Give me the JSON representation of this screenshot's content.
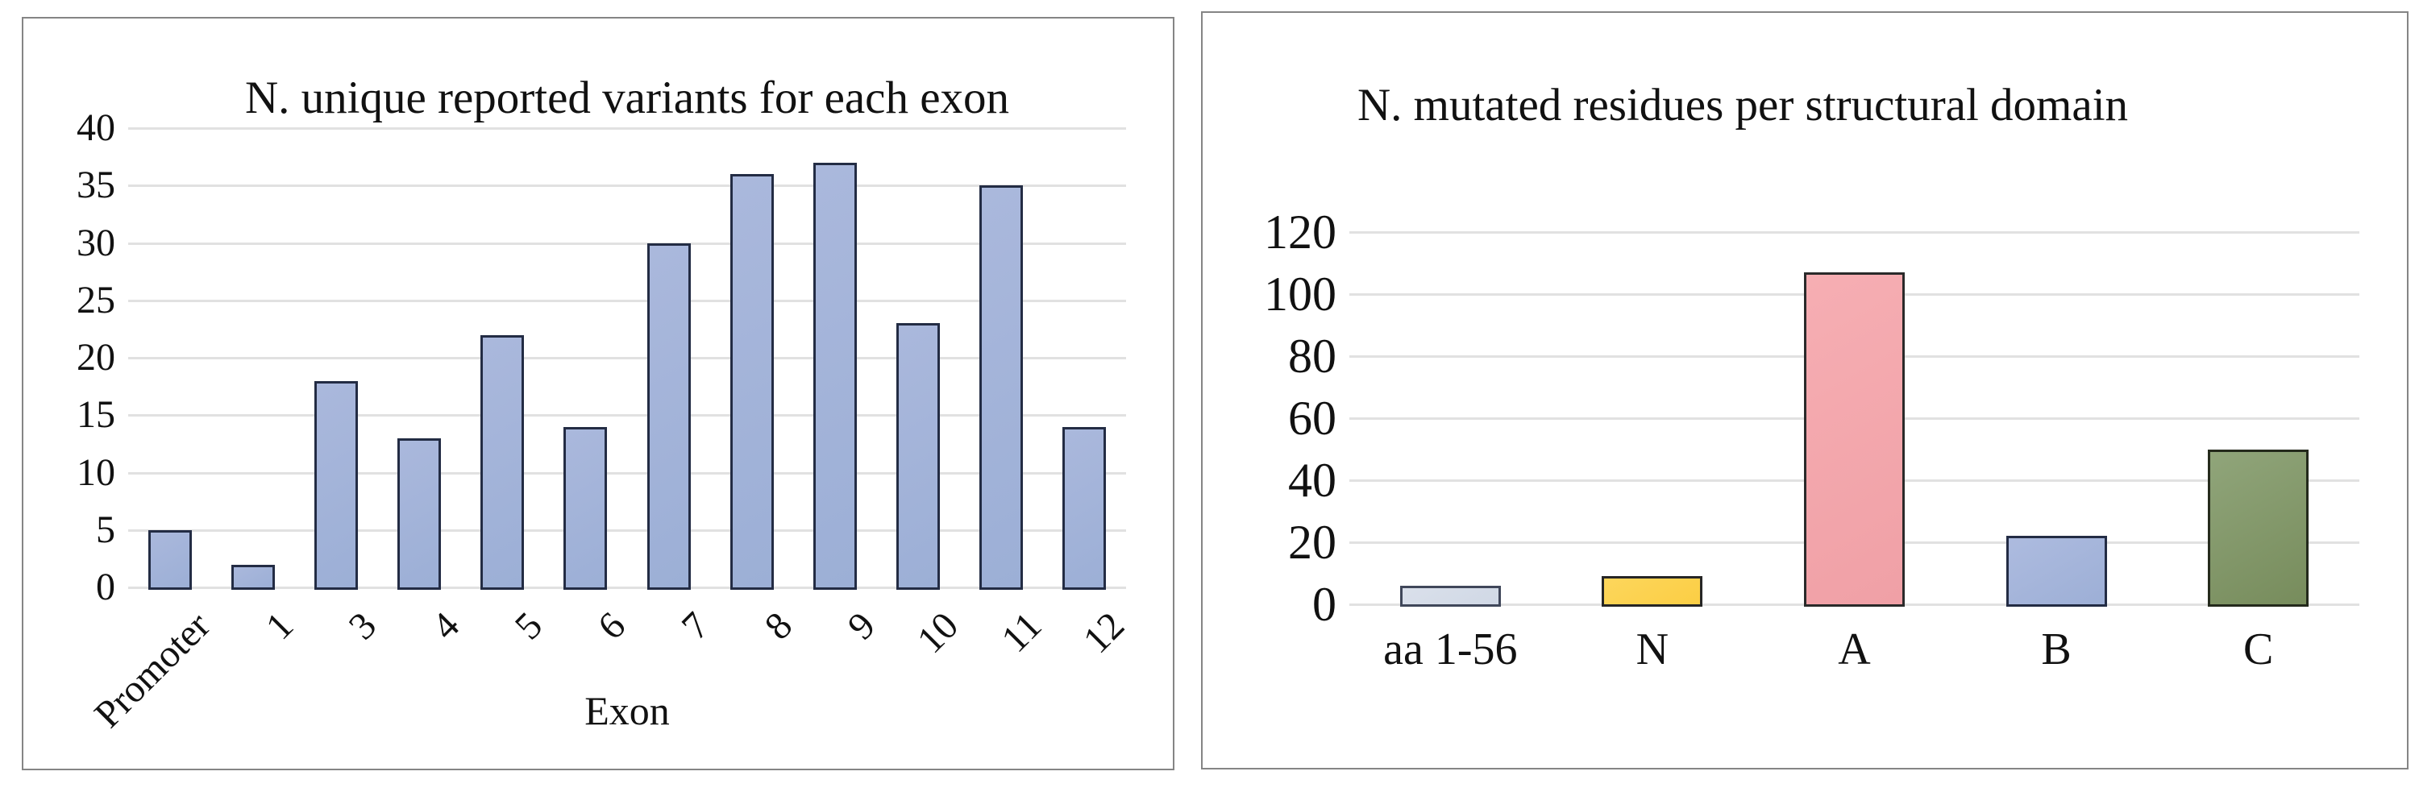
{
  "charts": [
    {
      "id": "exon-variants",
      "chart_data": {
        "type": "bar",
        "title": "N. unique reported variants for each exon",
        "xlabel": "Exon",
        "ylabel": "",
        "categories": [
          "Promoter",
          "1",
          "3",
          "4",
          "5",
          "6",
          "7",
          "8",
          "9",
          "10",
          "11",
          "12"
        ],
        "values": [
          5,
          2,
          18,
          13,
          22,
          14,
          30,
          36,
          37,
          23,
          35,
          14
        ],
        "ylim": [
          0,
          40
        ],
        "ytick_step": 5,
        "yticks": [
          "0",
          "5",
          "10",
          "15",
          "20",
          "25",
          "30",
          "35",
          "40"
        ],
        "grid": true,
        "legend": "none",
        "bar": {
          "light": "#aab8dc",
          "dark": "#9cafd6",
          "border": "#232c44"
        }
      }
    },
    {
      "id": "domain-mutations",
      "chart_data": {
        "type": "bar",
        "title": "N. mutated residues per structural domain",
        "xlabel": "",
        "ylabel": "",
        "categories": [
          "aa 1-56",
          "N",
          "A",
          "B",
          "C"
        ],
        "values": [
          6,
          9,
          107,
          22,
          50
        ],
        "ylim": [
          0,
          120
        ],
        "ytick_step": 20,
        "yticks": [
          "0",
          "20",
          "40",
          "60",
          "80",
          "100",
          "120"
        ],
        "grid": true,
        "legend": "none",
        "bars": [
          {
            "light": "#dae0eb",
            "dark": "#d0d8e5",
            "border": "#40475a"
          },
          {
            "light": "#fdd65c",
            "dark": "#fbce44",
            "border": "#262626"
          },
          {
            "light": "#f6aeb3",
            "dark": "#f0a0a6",
            "border": "#2a2a2a"
          },
          {
            "light": "#adbbdf",
            "dark": "#9dafd6",
            "border": "#232c44"
          },
          {
            "light": "#90a57a",
            "dark": "#778c5c",
            "border": "#242a1c"
          }
        ]
      }
    }
  ]
}
